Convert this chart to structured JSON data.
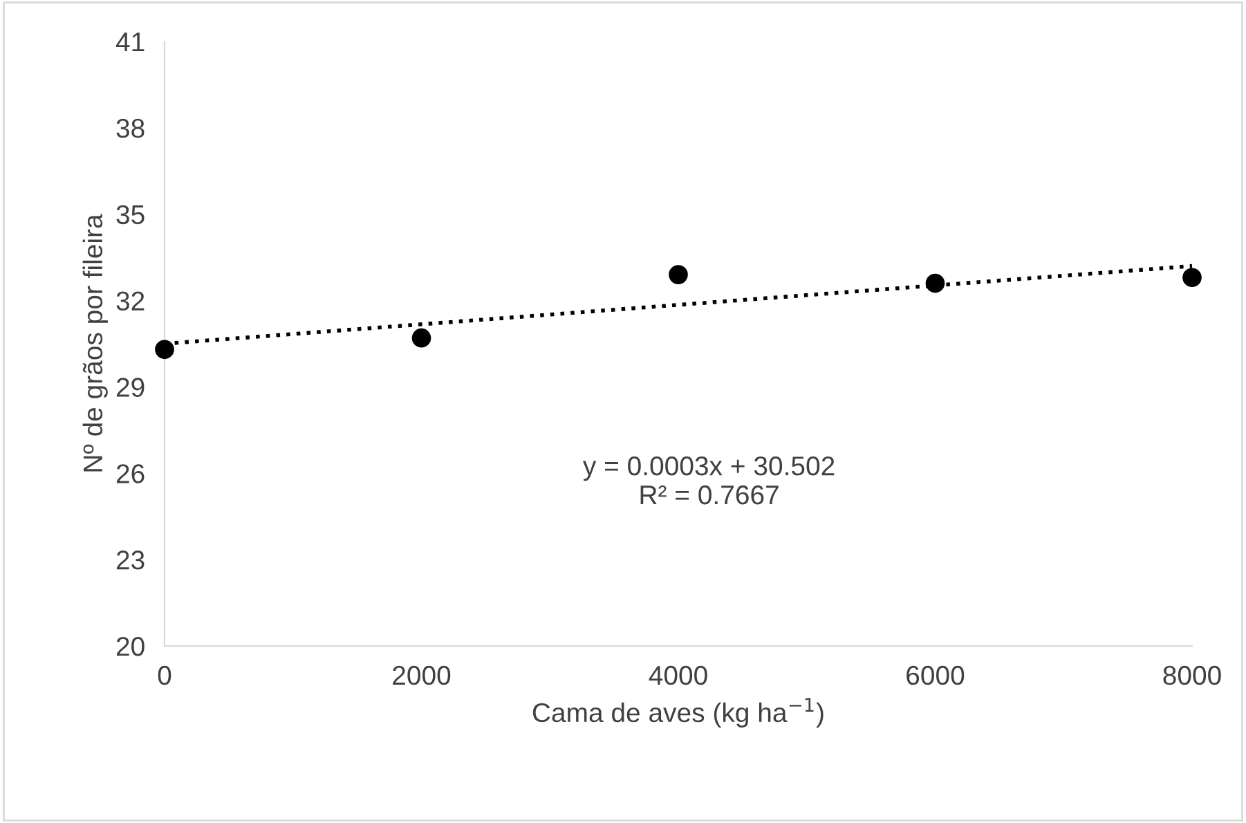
{
  "chart_data": {
    "type": "scatter",
    "xlabel": "Cama de aves (kg ha$^{−1}$)",
    "ylabel": "Nº de grãos por fileira",
    "x": [
      0,
      2000,
      4000,
      6000,
      8000
    ],
    "series": [
      {
        "color": "#000000",
        "marker": "circle",
        "values": [
          30.3,
          30.7,
          32.9,
          32.6,
          32.8
        ]
      },
      {
        "type": "line",
        "color": "#000000",
        "line_style": "dotted",
        "marker": "none",
        "x": [
          0,
          8000
        ],
        "values": [
          30.5,
          33.2
        ]
      }
    ],
    "annotations": [
      "y = 0.0003x + 30.502\nR² = 0.7667"
    ],
    "xlim": [
      0,
      8000
    ],
    "xticks": [
      0,
      2000,
      4000,
      6000,
      8000
    ],
    "ylim": [
      20,
      41
    ],
    "yticks": [
      20,
      23,
      26,
      29,
      32,
      35,
      38,
      41
    ],
    "grid": false,
    "legend": false
  }
}
